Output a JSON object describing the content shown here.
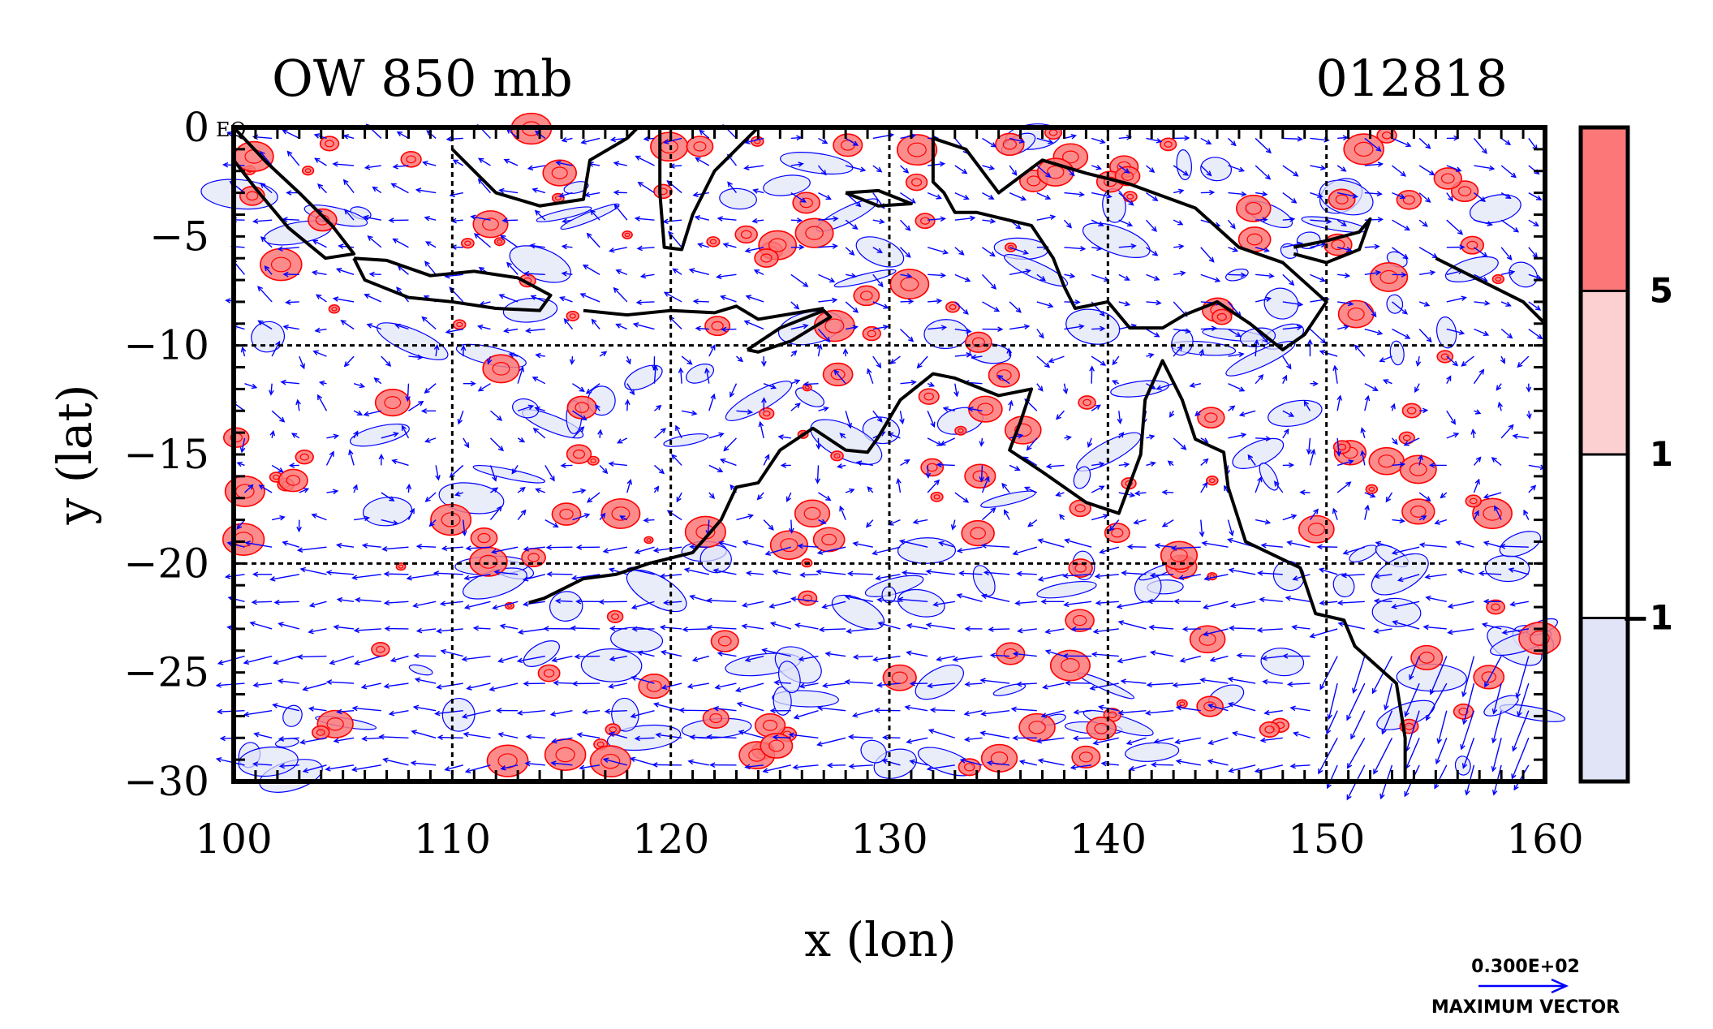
{
  "chart_data": {
    "type": "contour",
    "title": "OW 850 mb",
    "date_label": "012818",
    "xlabel": "x (lon)",
    "ylabel": "y (lat)",
    "xlim": [
      100,
      160
    ],
    "ylim": [
      -30,
      0
    ],
    "x_ticks": [
      100,
      110,
      120,
      130,
      140,
      150,
      160
    ],
    "y_ticks": [
      0,
      -5,
      -10,
      -15,
      -20,
      -25,
      -30
    ],
    "x_tick_labels": [
      "100",
      "110",
      "120",
      "130",
      "140",
      "150",
      "160"
    ],
    "y_tick_labels": [
      "0",
      "−5",
      "−10",
      "−15",
      "−20",
      "−25",
      "−30"
    ],
    "grid_lon": [
      110,
      120,
      130,
      140,
      150
    ],
    "grid_lat": [
      -10,
      -20
    ],
    "corner_mark": "EQ",
    "grid": true,
    "colorbar": {
      "levels": [
        -1,
        1,
        5
      ],
      "labels": [
        "−1",
        "1",
        "5"
      ],
      "colors": [
        "#e0e4f6",
        "#ffffff",
        "#fcd0d0",
        "#fc7878"
      ]
    },
    "colors": {
      "positive_contour": "#ff0000",
      "negative_contour": "#0000ff",
      "vector": "#0000ff",
      "coast": "#000000"
    },
    "vector_key": {
      "magnitude_label": "0.300E+02",
      "caption": "MAXIMUM VECTOR"
    },
    "coastlines": [
      {
        "name": "Sumatra",
        "points": [
          [
            100,
            0
          ],
          [
            101.5,
            -1.6
          ],
          [
            103,
            -3
          ],
          [
            104.5,
            -4.5
          ],
          [
            105.5,
            -5.8
          ],
          [
            104.2,
            -6
          ],
          [
            102.5,
            -4.6
          ],
          [
            101,
            -2.8
          ],
          [
            100,
            -1.5
          ]
        ]
      },
      {
        "name": "Java",
        "points": [
          [
            105.5,
            -6
          ],
          [
            107,
            -6.1
          ],
          [
            109,
            -6.8
          ],
          [
            111,
            -6.6
          ],
          [
            113,
            -6.9
          ],
          [
            114.5,
            -7.7
          ],
          [
            114,
            -8.4
          ],
          [
            112,
            -8.3
          ],
          [
            110,
            -8
          ],
          [
            108,
            -7.8
          ],
          [
            106,
            -7
          ],
          [
            105.5,
            -6
          ]
        ]
      },
      {
        "name": "Borneo",
        "points": [
          [
            110,
            -1
          ],
          [
            112,
            -3
          ],
          [
            114,
            -3.6
          ],
          [
            116,
            -3.3
          ],
          [
            116.3,
            -1.5
          ],
          [
            118,
            -0.5
          ],
          [
            118.5,
            0
          ]
        ]
      },
      {
        "name": "Sulawesi",
        "points": [
          [
            119.5,
            0
          ],
          [
            119.5,
            -3
          ],
          [
            119.7,
            -5.5
          ],
          [
            120.5,
            -5.6
          ],
          [
            121,
            -4
          ],
          [
            121.5,
            -3
          ],
          [
            122,
            -2
          ],
          [
            123,
            -1
          ],
          [
            124,
            0
          ]
        ]
      },
      {
        "name": "Lesser Sunda",
        "points": [
          [
            116,
            -8.4
          ],
          [
            118,
            -8.6
          ],
          [
            120,
            -8.4
          ],
          [
            122,
            -8.5
          ],
          [
            123,
            -8.2
          ],
          [
            124,
            -8.8
          ],
          [
            127,
            -8.3
          ]
        ]
      },
      {
        "name": "Timor",
        "points": [
          [
            123.5,
            -10.2
          ],
          [
            125,
            -9.2
          ],
          [
            127,
            -8.4
          ],
          [
            127.3,
            -8.7
          ],
          [
            125.5,
            -9.8
          ],
          [
            124,
            -10.3
          ],
          [
            123.5,
            -10.2
          ]
        ]
      },
      {
        "name": "Seram",
        "points": [
          [
            128,
            -3
          ],
          [
            129.5,
            -2.9
          ],
          [
            131,
            -3.5
          ],
          [
            129.5,
            -3.6
          ],
          [
            128,
            -3
          ]
        ]
      },
      {
        "name": "New Guinea",
        "points": [
          [
            132,
            -0.5
          ],
          [
            133.5,
            -1
          ],
          [
            135,
            -3
          ],
          [
            137,
            -1.5
          ],
          [
            139,
            -2.1
          ],
          [
            141,
            -2.6
          ],
          [
            144,
            -3.7
          ],
          [
            146,
            -5.5
          ],
          [
            148,
            -6.2
          ],
          [
            150,
            -8
          ],
          [
            149,
            -9.5
          ],
          [
            148,
            -10.2
          ],
          [
            146.5,
            -9
          ],
          [
            145,
            -8
          ],
          [
            143.5,
            -8.6
          ],
          [
            142.5,
            -9.2
          ],
          [
            141,
            -9.2
          ],
          [
            140,
            -8
          ],
          [
            138.5,
            -8.3
          ],
          [
            138,
            -7.3
          ],
          [
            137.5,
            -6
          ],
          [
            136.5,
            -4.5
          ],
          [
            134,
            -3.9
          ],
          [
            133,
            -3.9
          ],
          [
            132.5,
            -3
          ],
          [
            132,
            -2.5
          ],
          [
            132,
            -0.5
          ]
        ]
      },
      {
        "name": "New Britain",
        "points": [
          [
            148.5,
            -5.5
          ],
          [
            150,
            -5.2
          ],
          [
            151.5,
            -4.8
          ],
          [
            152,
            -4.2
          ],
          [
            151.5,
            -5.6
          ],
          [
            150,
            -6.2
          ],
          [
            148.5,
            -5.8
          ]
        ]
      },
      {
        "name": "Solomons",
        "points": [
          [
            155,
            -6
          ],
          [
            157,
            -7
          ],
          [
            159,
            -8
          ],
          [
            160,
            -9
          ]
        ]
      },
      {
        "name": "Australia",
        "points": [
          [
            113.5,
            -21.8
          ],
          [
            114.2,
            -21.6
          ],
          [
            116,
            -20.7
          ],
          [
            117.5,
            -20.5
          ],
          [
            119,
            -20
          ],
          [
            121,
            -19.5
          ],
          [
            122.3,
            -18
          ],
          [
            123,
            -16.5
          ],
          [
            124,
            -16.3
          ],
          [
            125,
            -14.8
          ],
          [
            126.5,
            -13.8
          ],
          [
            128,
            -14.8
          ],
          [
            129,
            -14.9
          ],
          [
            129.5,
            -14.2
          ],
          [
            130.5,
            -12.5
          ],
          [
            132,
            -11.3
          ],
          [
            133,
            -11.5
          ],
          [
            135,
            -12.3
          ],
          [
            136.5,
            -12
          ],
          [
            136,
            -13.5
          ],
          [
            135.5,
            -14.8
          ],
          [
            137,
            -15.8
          ],
          [
            139,
            -17.2
          ],
          [
            140.5,
            -17.7
          ],
          [
            141.5,
            -15
          ],
          [
            141.7,
            -12.5
          ],
          [
            142.5,
            -10.7
          ],
          [
            143.4,
            -12.5
          ],
          [
            144,
            -14.3
          ],
          [
            145.3,
            -14.9
          ],
          [
            145.5,
            -16.5
          ],
          [
            146.3,
            -19
          ],
          [
            148.8,
            -20.2
          ],
          [
            149.5,
            -22.3
          ],
          [
            150.8,
            -22.6
          ],
          [
            151.3,
            -23.8
          ],
          [
            153.2,
            -25.5
          ],
          [
            153.6,
            -28
          ],
          [
            153.6,
            -30
          ]
        ]
      }
    ]
  }
}
